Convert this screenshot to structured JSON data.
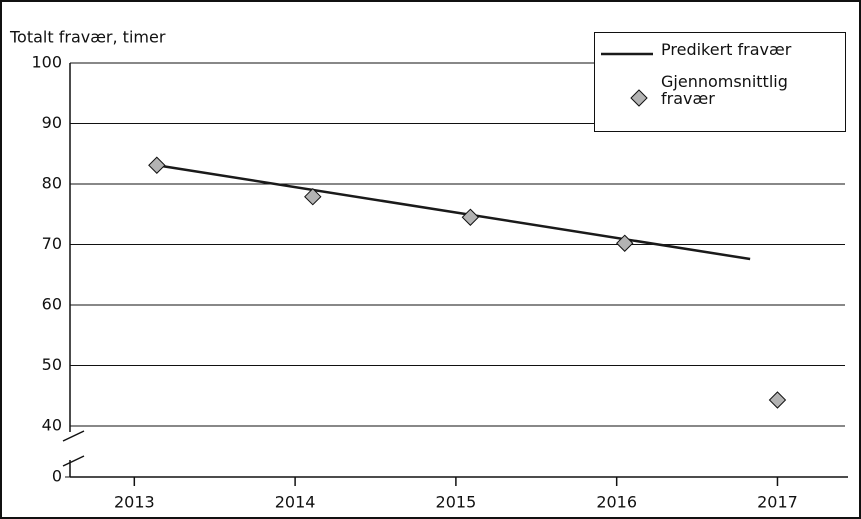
{
  "chart_data": {
    "type": "line",
    "y_label": "Totalt fravær, timer",
    "series": [
      {
        "name": "Predikert fravær",
        "color": "#1a1a1a",
        "marker": "none",
        "x": [
          2013.14,
          2016.83
        ],
        "values": [
          83.1,
          67.6
        ]
      },
      {
        "name": "Gjennomsnittlig fravær",
        "color": "#b3b3b3",
        "marker": "diamond",
        "x": [
          2013.14,
          2014.11,
          2015.09,
          2016.05,
          2017.0
        ],
        "values": [
          83.1,
          77.9,
          74.5,
          70.2,
          44.3
        ]
      }
    ],
    "xlim": [
      2012.6,
      2017.42
    ],
    "xticks": [
      2013,
      2014,
      2015,
      2016,
      2017
    ],
    "ylim": [
      0,
      100
    ],
    "yticks": [
      0,
      40,
      50,
      60,
      70,
      80,
      90,
      100
    ],
    "axis_break": [
      0,
      40
    ],
    "grid": true,
    "legend": "upper right"
  }
}
